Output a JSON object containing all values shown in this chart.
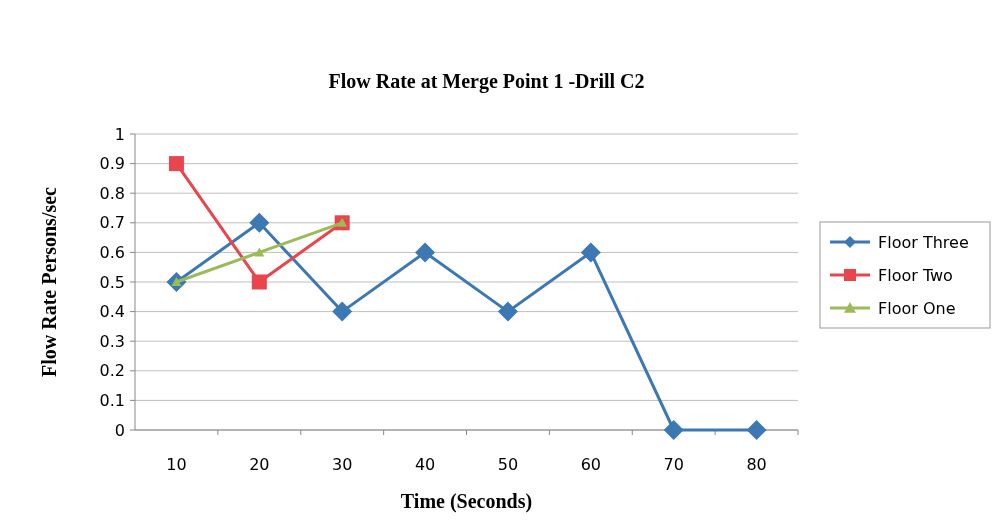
{
  "chart_data": {
    "type": "line",
    "title": "Flow Rate at Merge Point 1 -Drill C2",
    "xlabel": "Time (Seconds)",
    "ylabel": "Flow Rate Persons/sec",
    "categories": [
      "10",
      "20",
      "30",
      "40",
      "50",
      "60",
      "70",
      "80"
    ],
    "series": [
      {
        "name": "Floor Three",
        "color": "#3b78b4",
        "marker": "diamond",
        "values": [
          0.5,
          0.7,
          0.4,
          0.6,
          0.4,
          0.6,
          0,
          0
        ]
      },
      {
        "name": "Floor Two",
        "color": "#e8454d",
        "marker": "square",
        "values": [
          0.9,
          0.5,
          0.7,
          null,
          null,
          null,
          null,
          null
        ]
      },
      {
        "name": "Floor One",
        "color": "#9bbb59",
        "marker": "triangle",
        "values": [
          0.5,
          0.6,
          0.7,
          null,
          null,
          null,
          null,
          null
        ]
      }
    ],
    "ylim": [
      0,
      1
    ],
    "yticks": [
      0,
      0.1,
      0.2,
      0.3,
      0.4,
      0.5,
      0.6,
      0.7,
      0.8,
      0.9,
      1
    ],
    "grid": "y",
    "legend": "right"
  }
}
